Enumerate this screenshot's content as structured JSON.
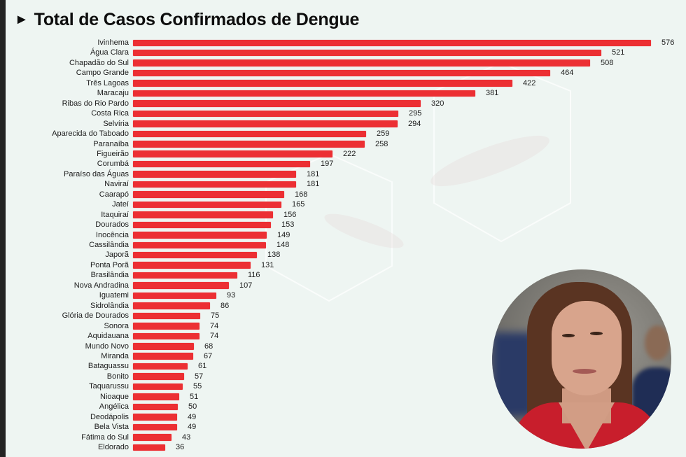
{
  "title": "Total de Casos Confirmados de Dengue",
  "title_marker": "►",
  "colors": {
    "bar": "#ec2f33",
    "background": "#eef5f2",
    "text": "#1c1c1c"
  },
  "rows": [
    {
      "label": "Ivinhema",
      "value": "576"
    },
    {
      "label": "Água Clara",
      "value": "521"
    },
    {
      "label": "Chapadão do Sul",
      "value": "508"
    },
    {
      "label": "Campo Grande",
      "value": "464"
    },
    {
      "label": "Três Lagoas",
      "value": "422"
    },
    {
      "label": "Maracaju",
      "value": "381"
    },
    {
      "label": "Ribas do Rio Pardo",
      "value": "320"
    },
    {
      "label": "Costa Rica",
      "value": "295"
    },
    {
      "label": "Selvíria",
      "value": "294"
    },
    {
      "label": "Aparecida do Taboado",
      "value": "259"
    },
    {
      "label": "Paranaíba",
      "value": "258"
    },
    {
      "label": "Figueirão",
      "value": "222"
    },
    {
      "label": "Corumbá",
      "value": "197"
    },
    {
      "label": "Paraíso das Águas",
      "value": "181"
    },
    {
      "label": "Naviraí",
      "value": "181"
    },
    {
      "label": "Caarapó",
      "value": "168"
    },
    {
      "label": "Jateí",
      "value": "165"
    },
    {
      "label": "Itaquiraí",
      "value": "156"
    },
    {
      "label": "Dourados",
      "value": "153"
    },
    {
      "label": "Inocência",
      "value": "149"
    },
    {
      "label": "Cassilândia",
      "value": "148"
    },
    {
      "label": "Japorã",
      "value": "138"
    },
    {
      "label": "Ponta Porã",
      "value": "131"
    },
    {
      "label": "Brasilândia",
      "value": "116"
    },
    {
      "label": "Nova Andradina",
      "value": "107"
    },
    {
      "label": "Iguatemi",
      "value": "93"
    },
    {
      "label": "Sidrolândia",
      "value": "86"
    },
    {
      "label": "Glória de Dourados",
      "value": "75"
    },
    {
      "label": "Sonora",
      "value": "74"
    },
    {
      "label": "Aquidauana",
      "value": "74"
    },
    {
      "label": "Mundo Novo",
      "value": "68"
    },
    {
      "label": "Miranda",
      "value": "67"
    },
    {
      "label": "Bataguassu",
      "value": "61"
    },
    {
      "label": "Bonito",
      "value": "57"
    },
    {
      "label": "Taquarussu",
      "value": "55"
    },
    {
      "label": "Nioaque",
      "value": "51"
    },
    {
      "label": "Angélica",
      "value": "50"
    },
    {
      "label": "Deodápolis",
      "value": "49"
    },
    {
      "label": "Bela Vista",
      "value": "49"
    },
    {
      "label": "Fátima do Sul",
      "value": "43"
    },
    {
      "label": "Eldorado",
      "value": "36"
    }
  ],
  "chart_data": {
    "type": "bar",
    "orientation": "horizontal",
    "title": "Total de Casos Confirmados de Dengue",
    "xlabel": "",
    "ylabel": "",
    "grid": false,
    "legend": null,
    "data_labels": true,
    "categories": [
      "Ivinhema",
      "Água Clara",
      "Chapadão do Sul",
      "Campo Grande",
      "Três Lagoas",
      "Maracaju",
      "Ribas do Rio Pardo",
      "Costa Rica",
      "Selvíria",
      "Aparecida do Taboado",
      "Paranaíba",
      "Figueirão",
      "Corumbá",
      "Paraíso das Águas",
      "Naviraí",
      "Caarapó",
      "Jateí",
      "Itaquiraí",
      "Dourados",
      "Inocência",
      "Cassilândia",
      "Japorã",
      "Ponta Porã",
      "Brasilândia",
      "Nova Andradina",
      "Iguatemi",
      "Sidrolândia",
      "Glória de Dourados",
      "Sonora",
      "Aquidauana",
      "Mundo Novo",
      "Miranda",
      "Bataguassu",
      "Bonito",
      "Taquarussu",
      "Nioaque",
      "Angélica",
      "Deodápolis",
      "Bela Vista",
      "Fátima do Sul",
      "Eldorado"
    ],
    "values": [
      576,
      521,
      508,
      464,
      422,
      381,
      320,
      295,
      294,
      259,
      258,
      222,
      197,
      181,
      181,
      168,
      165,
      156,
      153,
      149,
      148,
      138,
      131,
      116,
      107,
      93,
      86,
      75,
      74,
      74,
      68,
      67,
      61,
      57,
      55,
      51,
      50,
      49,
      49,
      43,
      36
    ],
    "xlim": [
      0,
      576
    ],
    "color": "#ec2f33",
    "note": "Additional rows continue below the visible area (cut off)."
  },
  "photo": {
    "alt": "Circular portrait photo of a woman in a red top",
    "shape": "circle"
  }
}
